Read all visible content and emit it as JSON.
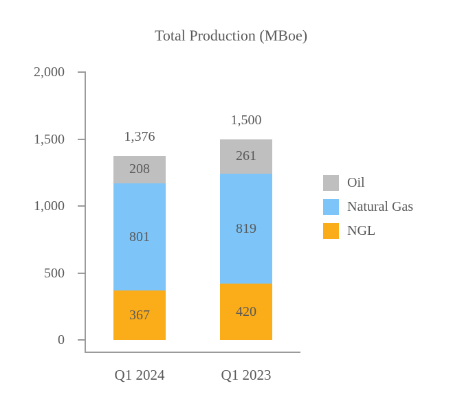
{
  "chart_data": {
    "type": "bar",
    "stacked": true,
    "title": "Total Production (MBoe)",
    "categories": [
      "Q1 2024",
      "Q1 2023"
    ],
    "series": [
      {
        "name": "Oil",
        "color": "#BFBFBF",
        "values": [
          208,
          261
        ]
      },
      {
        "name": "Natural Gas",
        "color": "#7DC5F8",
        "values": [
          801,
          819
        ]
      },
      {
        "name": "NGL",
        "color": "#FAAC19",
        "values": [
          367,
          420
        ]
      }
    ],
    "totals": [
      1376,
      1500
    ],
    "yticks": [
      0,
      500,
      1000,
      1500,
      2000
    ],
    "ylim": [
      0,
      2000
    ],
    "xlabel": "",
    "ylabel": "",
    "grid": false,
    "legend_position": "right",
    "text_color": "#595959",
    "axis_color": "#9B9B9B"
  }
}
